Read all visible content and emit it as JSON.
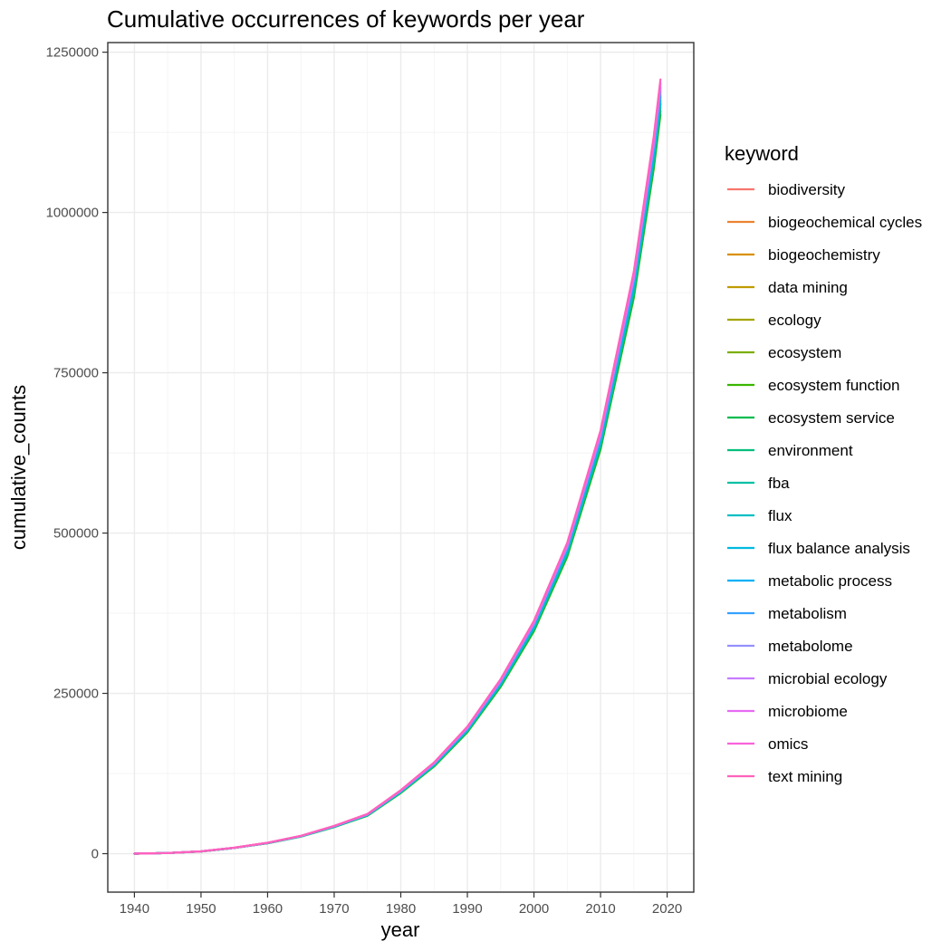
{
  "chart_data": {
    "type": "line",
    "title": "Cumulative occurrences of keywords per year",
    "xlabel": "year",
    "ylabel": "cumulative_counts",
    "xlim": [
      1936,
      2024
    ],
    "ylim": [
      -60000,
      1265000
    ],
    "x_ticks": [
      1940,
      1950,
      1960,
      1970,
      1980,
      1990,
      2000,
      2010,
      2020
    ],
    "y_ticks": [
      0,
      250000,
      500000,
      750000,
      1000000,
      1250000
    ],
    "y_tick_labels": [
      "0",
      "250000",
      "500000",
      "750000",
      "1000000",
      "1250000"
    ],
    "grid": true,
    "legend": {
      "title": "keyword",
      "position": "right"
    },
    "x": [
      1940,
      1945,
      1950,
      1955,
      1960,
      1965,
      1970,
      1975,
      1980,
      1985,
      1990,
      1995,
      2000,
      2005,
      2010,
      2015,
      2018,
      2019
    ],
    "base_values": [
      0,
      1000,
      3500,
      9000,
      16500,
      27000,
      42000,
      60000,
      96000,
      138000,
      192000,
      264000,
      352000,
      470000,
      640000,
      880000,
      1085000,
      1170000
    ],
    "series": [
      {
        "name": "biodiversity",
        "color": "#F8766D",
        "scale": 1.02
      },
      {
        "name": "biogeochemical cycles",
        "color": "#EA8331",
        "scale": 1.015
      },
      {
        "name": "biogeochemistry",
        "color": "#D89000",
        "scale": 1.01
      },
      {
        "name": "data mining",
        "color": "#C09B00",
        "scale": 1.005
      },
      {
        "name": "ecology",
        "color": "#A3A500",
        "scale": 1.0
      },
      {
        "name": "ecosystem",
        "color": "#7CAE00",
        "scale": 0.998
      },
      {
        "name": "ecosystem function",
        "color": "#39B600",
        "scale": 0.985
      },
      {
        "name": "ecosystem service",
        "color": "#00BB4E",
        "scale": 0.99
      },
      {
        "name": "environment",
        "color": "#00BF7D",
        "scale": 0.995
      },
      {
        "name": "fba",
        "color": "#00C1A3",
        "scale": 1.0
      },
      {
        "name": "flux",
        "color": "#00BFC4",
        "scale": 1.003
      },
      {
        "name": "flux balance analysis",
        "color": "#00BAE0",
        "scale": 1.008
      },
      {
        "name": "metabolic process",
        "color": "#00B0F6",
        "scale": 1.012
      },
      {
        "name": "metabolism",
        "color": "#35A2FF",
        "scale": 1.016
      },
      {
        "name": "metabolome",
        "color": "#9590FF",
        "scale": 1.018
      },
      {
        "name": "microbial ecology",
        "color": "#C77CFF",
        "scale": 1.022
      },
      {
        "name": "microbiome",
        "color": "#E76BF3",
        "scale": 1.026
      },
      {
        "name": "omics",
        "color": "#FA62DB",
        "scale": 1.028
      },
      {
        "name": "text mining",
        "color": "#FF62BC",
        "scale": 1.032
      }
    ]
  }
}
